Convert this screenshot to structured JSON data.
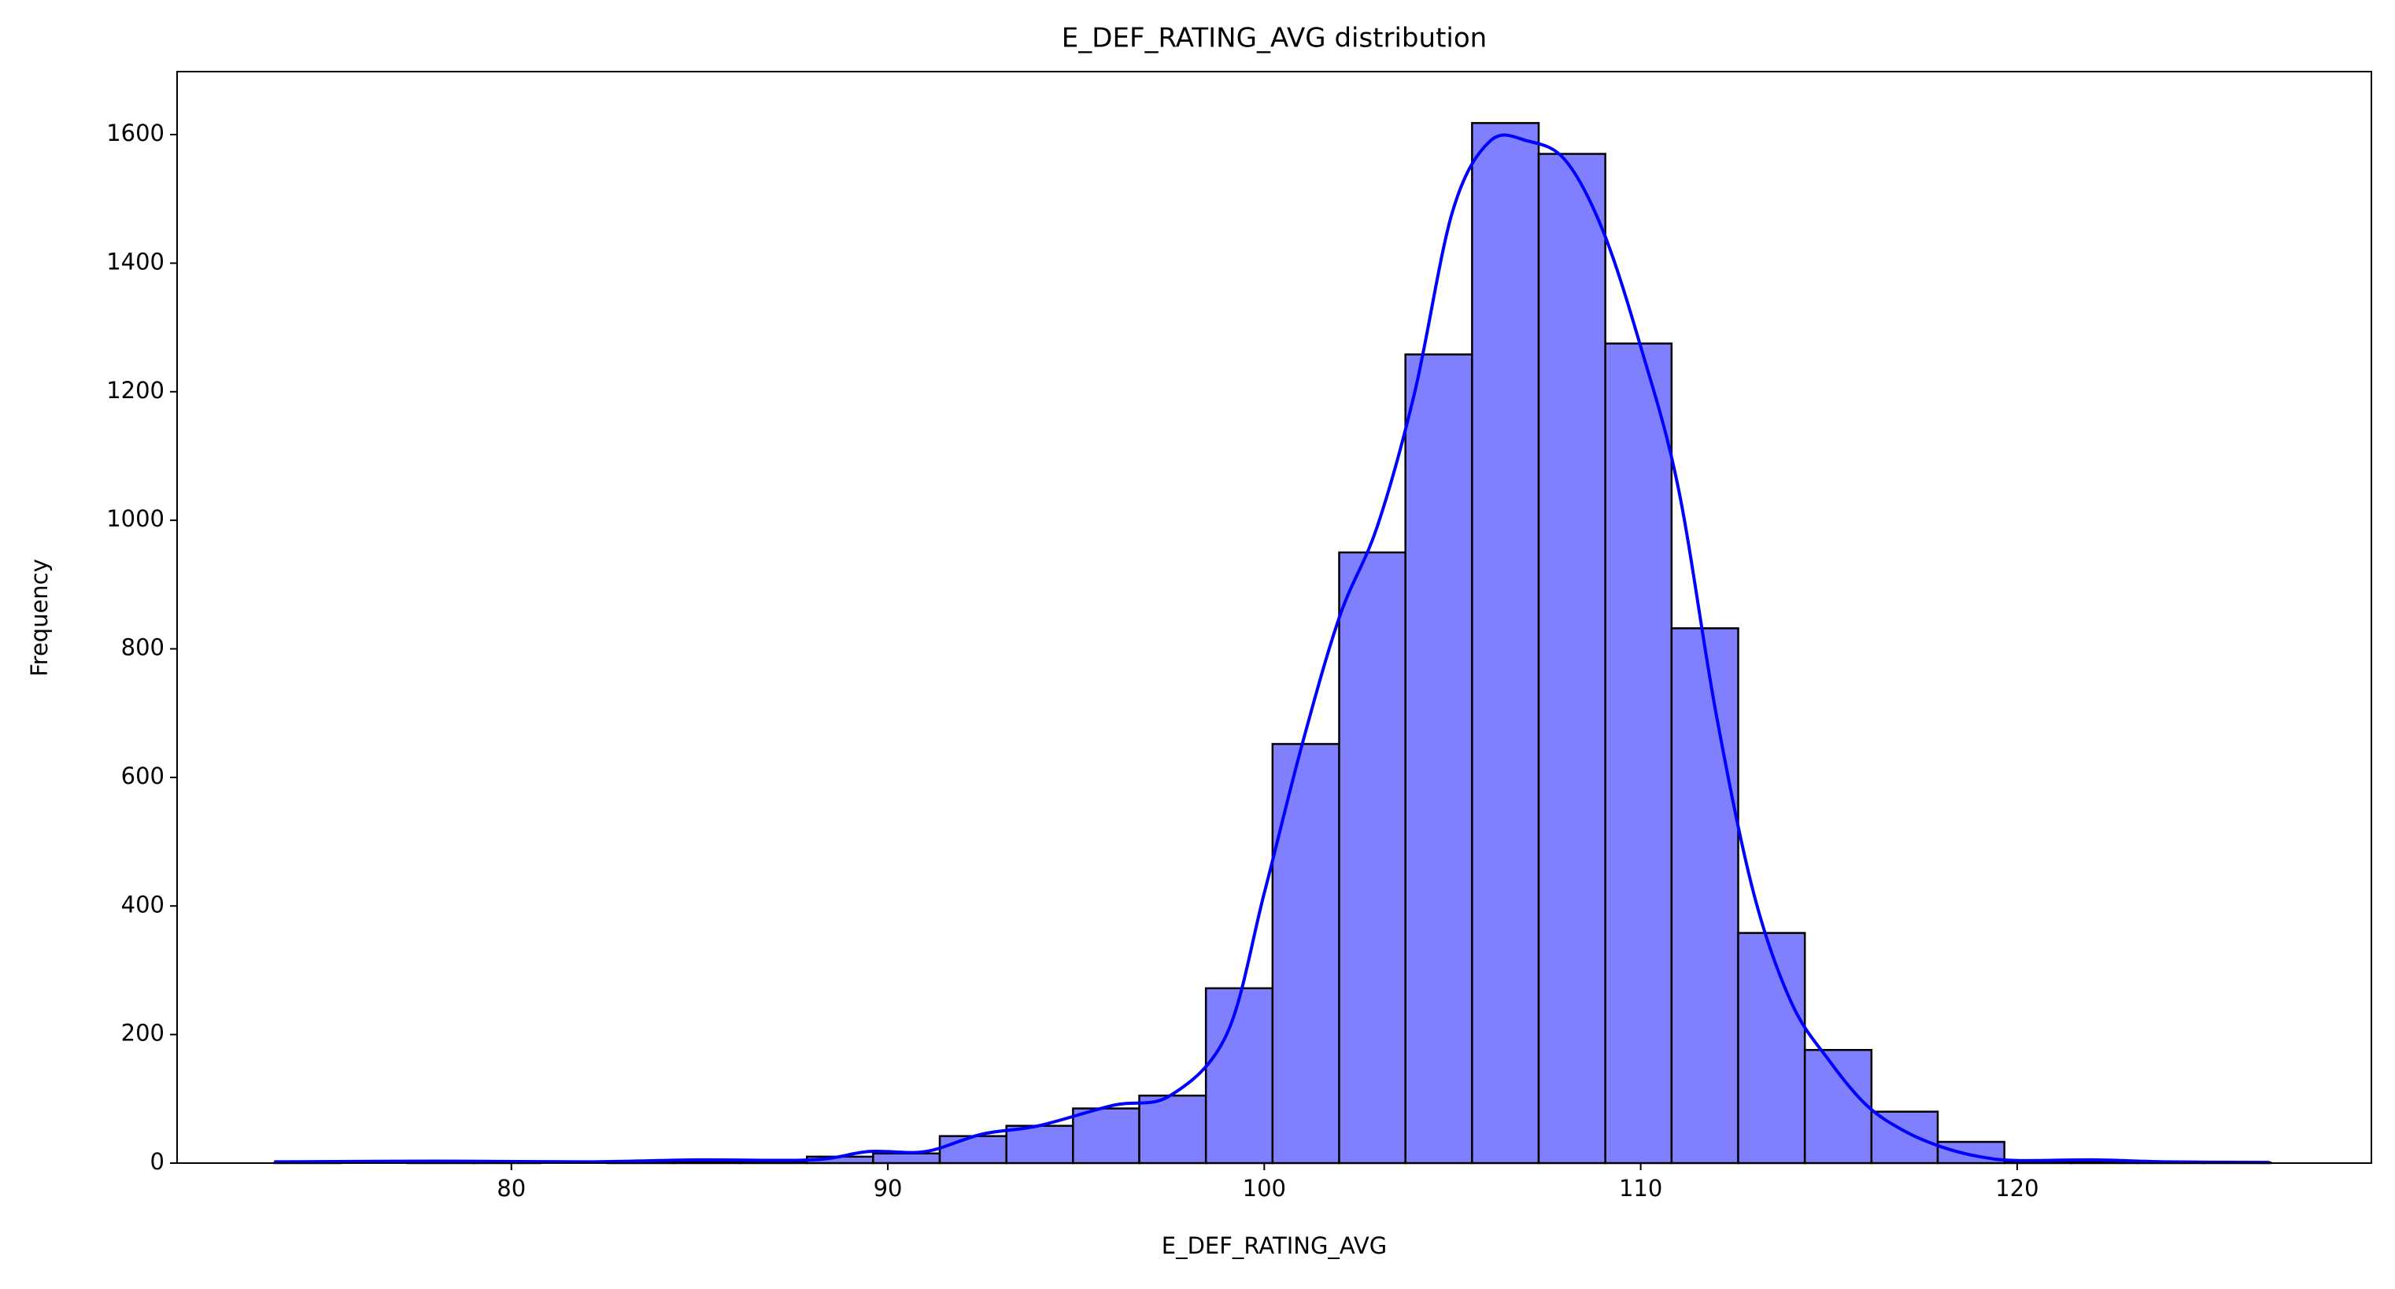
{
  "chart_data": {
    "type": "histogram",
    "title": "E_DEF_RATING_AVG distribution",
    "x_label": "E_DEF_RATING_AVG",
    "y_label": "Frequency",
    "bins": [
      73.71,
      75.48,
      77.24,
      79.01,
      80.78,
      82.55,
      84.31,
      86.08,
      87.85,
      89.61,
      91.38,
      93.15,
      94.92,
      96.68,
      98.45,
      100.22,
      101.99,
      103.75,
      105.52,
      107.29,
      109.06,
      110.82,
      112.59,
      114.36,
      116.13,
      117.89,
      119.66,
      121.43,
      123.2,
      124.96,
      126.73
    ],
    "counts": [
      1,
      0,
      1,
      1,
      0,
      1,
      2,
      1,
      10,
      15,
      42,
      58,
      85,
      105,
      272,
      652,
      950,
      1258,
      1618,
      1570,
      1275,
      832,
      358,
      176,
      80,
      33,
      3,
      2,
      1,
      1
    ],
    "color": "#8080ff",
    "kde": {
      "color": "#0000ff",
      "x": [
        73.7,
        78,
        82,
        85,
        88,
        89.5,
        91,
        92.5,
        94,
        96,
        97.5,
        99,
        100,
        101,
        102,
        103,
        104,
        105,
        106,
        107,
        108,
        109,
        110,
        111,
        112,
        113,
        114,
        115,
        116,
        117,
        118,
        119,
        120,
        122,
        124,
        126.7
      ],
      "values": [
        2,
        3,
        2,
        5,
        5,
        18,
        18,
        45,
        58,
        90,
        105,
        200,
        420,
        650,
        850,
        990,
        1200,
        1480,
        1590,
        1590,
        1560,
        1450,
        1270,
        1050,
        700,
        420,
        250,
        160,
        90,
        50,
        25,
        10,
        4,
        5,
        2,
        1
      ]
    },
    "xlim": [
      71.12,
      129.41
    ],
    "ylim": [
      0,
      1698
    ],
    "xticks": [
      80,
      90,
      100,
      110,
      120
    ],
    "yticks": [
      0,
      200,
      400,
      600,
      800,
      1000,
      1200,
      1400,
      1600
    ],
    "grid": false
  }
}
